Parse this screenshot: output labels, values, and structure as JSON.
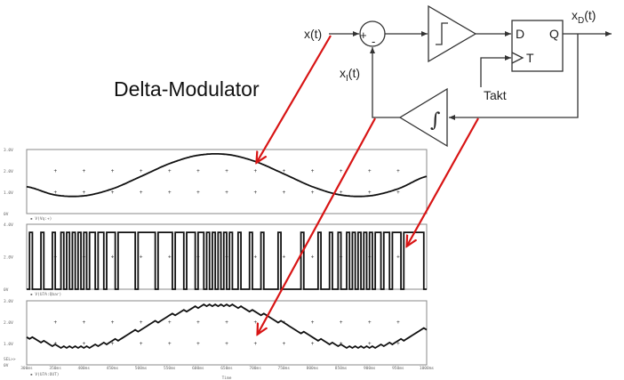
{
  "title": "Delta-Modulator",
  "diagram": {
    "input_label": "x(t)",
    "output_label_base": "x",
    "output_label_sub": "D",
    "output_label_tail": "(t)",
    "feedback_label_base": "x",
    "feedback_label_sub": "I",
    "feedback_label_tail": "(t)",
    "summer_plus": "+",
    "summer_minus": "-",
    "flipflop_d": "D",
    "flipflop_q": "Q",
    "flipflop_t": "T",
    "clock_label": "Takt",
    "integrator_symbol": "∫",
    "comparator_icon": "step-function-icon",
    "arrow_color": "#d81414"
  },
  "chart_data": [
    {
      "type": "line",
      "legend": "V(Vq:+)",
      "yticks": [
        "3.0V",
        "2.0V",
        "1.0V",
        "0V"
      ],
      "ylim": [
        0,
        3
      ],
      "xlim": [
        300,
        1000
      ],
      "x": [
        300,
        350,
        400,
        450,
        500,
        550,
        600,
        650,
        700,
        750,
        800,
        850,
        900,
        950,
        1000
      ],
      "values": [
        1.26,
        0.87,
        0.83,
        1.16,
        1.74,
        2.34,
        2.73,
        2.77,
        2.44,
        1.86,
        1.26,
        0.87,
        0.83,
        1.16,
        1.74
      ]
    },
    {
      "type": "line",
      "legend": "V(U7A:Qbar)",
      "yticks": [
        "4.0V",
        "2.0V",
        "0V"
      ],
      "ylim": [
        0,
        4
      ],
      "xlim": [
        300,
        1000
      ],
      "levels": {
        "high": 3.5,
        "low": 0
      }
    },
    {
      "type": "line",
      "legend": "V(U7A:OUT)",
      "yticks": [
        "3.0V",
        "2.0V",
        "1.0V",
        "0V"
      ],
      "ylim": [
        0,
        3
      ],
      "xlim": [
        300,
        1000
      ],
      "sel_label": "SEL>>",
      "xticks": [
        "300ms",
        "350ms",
        "400ms",
        "450ms",
        "500ms",
        "550ms",
        "600ms",
        "650ms",
        "700ms",
        "750ms",
        "800ms",
        "850ms",
        "900ms",
        "950ms",
        "1000ms"
      ],
      "xlabel": "Time"
    }
  ]
}
